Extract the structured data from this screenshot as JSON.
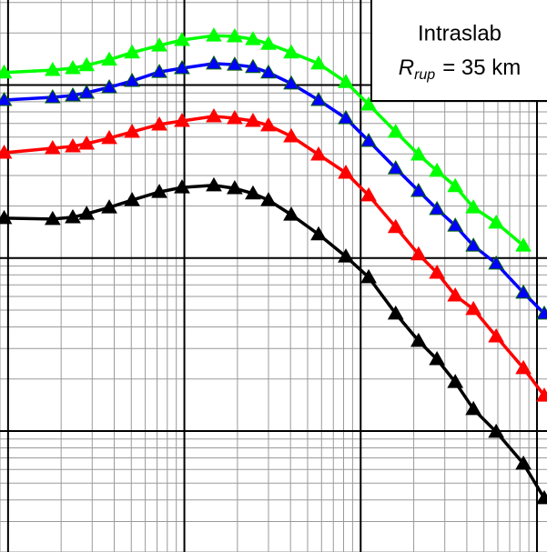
{
  "chart_data": {
    "type": "line",
    "annotation": {
      "title": "Intraslab",
      "symbol": "R",
      "subscript": "rup",
      "text": "= 35 km"
    },
    "x": [
      0.0095,
      0.0179,
      0.0233,
      0.0279,
      0.0375,
      0.0505,
      0.0721,
      0.097,
      0.147,
      0.193,
      0.245,
      0.3,
      0.404,
      0.577,
      0.824,
      1.11,
      1.58,
      2.13,
      2.71,
      3.44,
      4.36,
      5.87,
      8.38,
      11.0
    ],
    "series": [
      {
        "color": "#000000",
        "values": [
          0.17,
          0.168,
          0.172,
          0.18,
          0.196,
          0.216,
          0.241,
          0.256,
          0.263,
          0.253,
          0.236,
          0.216,
          0.178,
          0.137,
          0.102,
          0.0774,
          0.0477,
          0.0332,
          0.026,
          0.0192,
          0.0134,
          0.00989,
          0.00648,
          0.00409
        ]
      },
      {
        "color": "#ff0000",
        "values": [
          0.406,
          0.431,
          0.442,
          0.458,
          0.493,
          0.536,
          0.591,
          0.62,
          0.659,
          0.643,
          0.62,
          0.584,
          0.505,
          0.396,
          0.311,
          0.23,
          0.151,
          0.105,
          0.0822,
          0.0607,
          0.0507,
          0.0352,
          0.0231,
          0.016
        ]
      },
      {
        "color": "#0000ff",
        "values": [
          0.819,
          0.849,
          0.87,
          0.902,
          0.97,
          1.056,
          1.19,
          1.25,
          1.33,
          1.31,
          1.27,
          1.18,
          1.02,
          0.819,
          0.643,
          0.475,
          0.33,
          0.244,
          0.192,
          0.154,
          0.118,
          0.0928,
          0.063,
          0.0477
        ]
      },
      {
        "color": "#00ff00",
        "values": [
          1.18,
          1.22,
          1.25,
          1.3,
          1.4,
          1.54,
          1.69,
          1.82,
          1.93,
          1.91,
          1.84,
          1.73,
          1.54,
          1.33,
          1.04,
          0.771,
          0.536,
          0.396,
          0.319,
          0.26,
          0.196,
          0.16,
          0.118,
          null
        ]
      }
    ],
    "marker": "triangle",
    "xlim": [
      0.009,
      11.4
    ],
    "ylim": [
      0.002,
      3.1
    ],
    "xticks": [
      0.01,
      0.1,
      1,
      10
    ],
    "yticks": [
      0.01,
      0.1,
      1
    ],
    "xlog": true,
    "ylog": true,
    "grid": true
  }
}
